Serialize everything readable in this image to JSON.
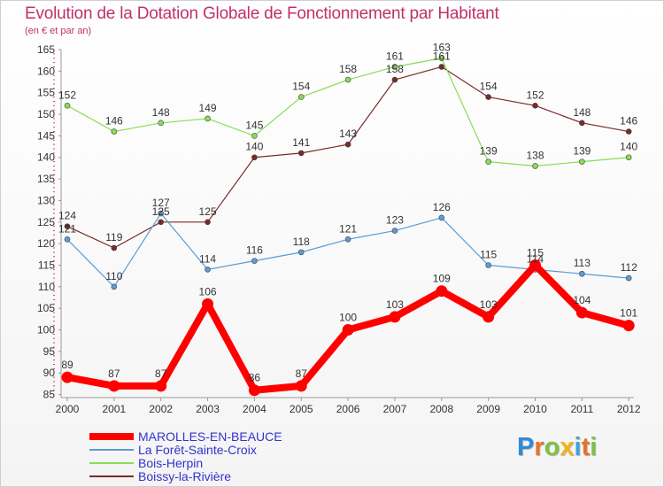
{
  "title": "Evolution de la Dotation Globale de Fonctionnement par Habitant",
  "subtitle": "(en € et par an)",
  "logo": {
    "text": "Proxiti"
  },
  "chart_data": {
    "type": "line",
    "title": "Evolution de la Dotation Globale de Fonctionnement par Habitant",
    "subtitle": "(en € et par an)",
    "x": [
      "2000",
      "2001",
      "2002",
      "2003",
      "2004",
      "2005",
      "2006",
      "2007",
      "2008",
      "2009",
      "2010",
      "2011",
      "2012"
    ],
    "yticks": [
      "85",
      "90",
      "95",
      "100",
      "105",
      "110",
      "115",
      "120",
      "125",
      "130",
      "135",
      "140",
      "145",
      "150",
      "155",
      "160",
      "165"
    ],
    "ylim": [
      84.3,
      165
    ],
    "grid": false,
    "legend_position": "bottom-left",
    "series": [
      {
        "name": "MAROLLES-EN-BEAUCE",
        "color": "#ff0000",
        "label_color": "#3333cc",
        "values": [
          89,
          87,
          87,
          106,
          86,
          87,
          100,
          103,
          109,
          103,
          115,
          104,
          101
        ]
      },
      {
        "name": "La Forêt-Sainte-Croix",
        "color": "#5c9bd5",
        "label_color": "#3333cc",
        "values": [
          121,
          110,
          127,
          114,
          116,
          118,
          121,
          123,
          126,
          115,
          114,
          113,
          112
        ]
      },
      {
        "name": "Bois-Herpin",
        "color": "#88dd55",
        "label_color": "#3333cc",
        "values": [
          152,
          146,
          148,
          149,
          145,
          154,
          158,
          161,
          163,
          139,
          138,
          139,
          140
        ]
      },
      {
        "name": "Boissy-la-Rivière",
        "color": "#7a2a2a",
        "label_color": "#3333cc",
        "values": [
          124,
          119,
          125,
          125,
          140,
          141,
          143,
          158,
          161,
          154,
          152,
          148,
          146
        ]
      }
    ]
  }
}
